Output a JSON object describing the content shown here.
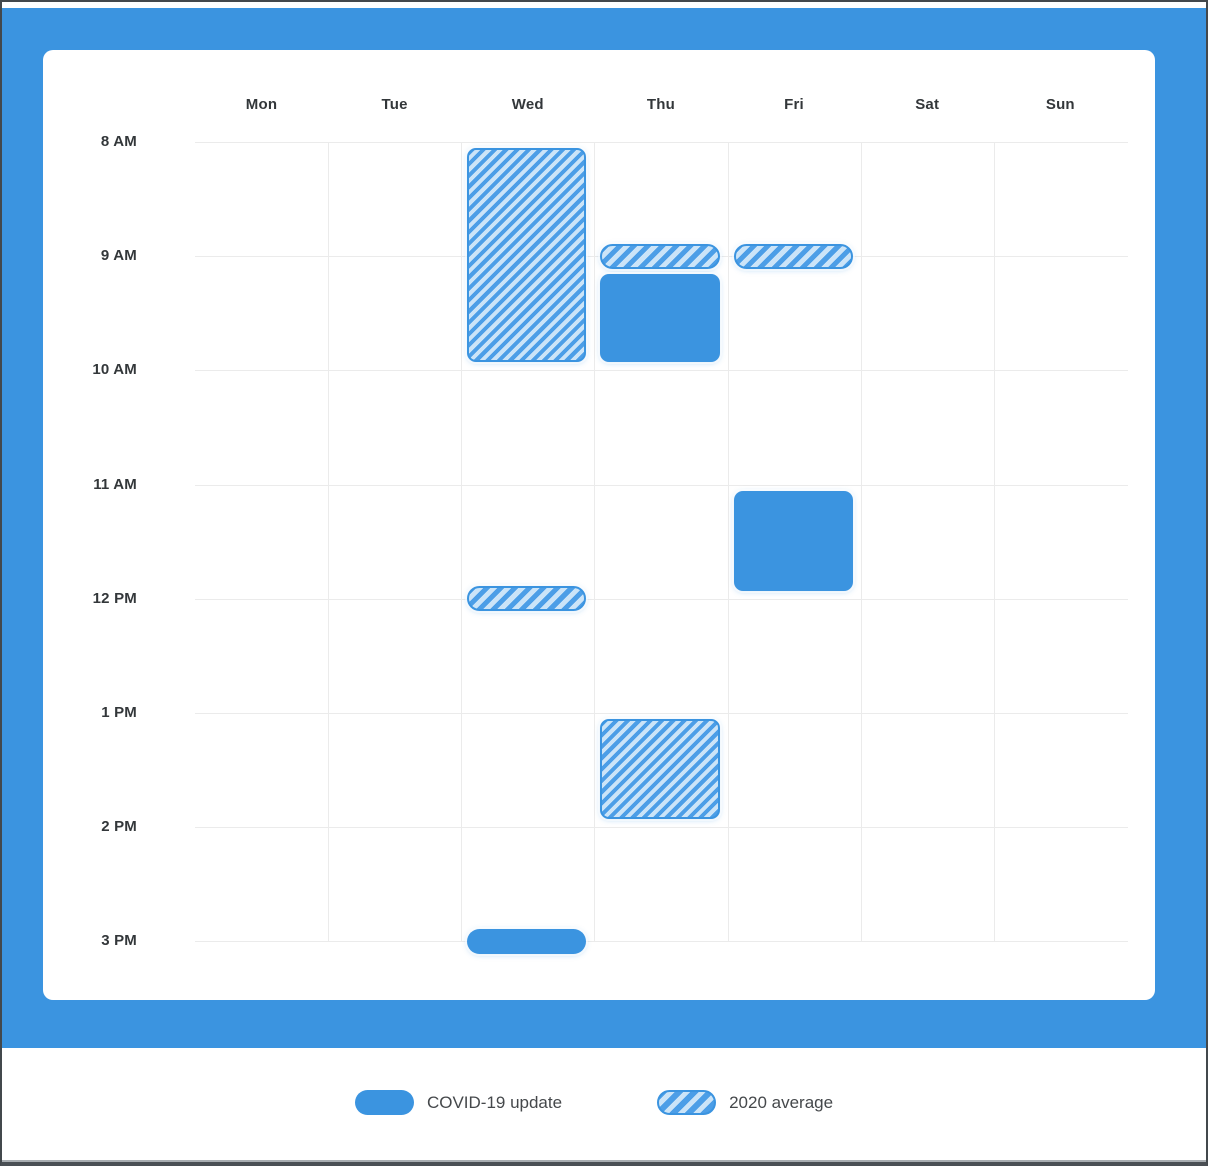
{
  "colors": {
    "accent_blue": "#3B94E0",
    "stripe_blue": "#4C9EE7",
    "stripe_light": "#CBE4F8",
    "grid_line": "#EBEBEB",
    "label_text": "#33373A",
    "legend_text": "#45484B",
    "card_background": "#FFFFFF"
  },
  "chart_data": {
    "type": "calendar-week",
    "title": "",
    "day_labels": [
      "Mon",
      "Tue",
      "Wed",
      "Thu",
      "Fri",
      "Sat",
      "Sun"
    ],
    "time_labels": [
      "8 AM",
      "9 AM",
      "10 AM",
      "11 AM",
      "12 PM",
      "1 PM",
      "2 PM",
      "3 PM"
    ],
    "time_axis": {
      "start_hour": 8,
      "end_hour": 15,
      "grid": true
    },
    "series": [
      {
        "id": "covid",
        "name": "COVID-19 update",
        "style": "solid"
      },
      {
        "id": "average",
        "name": "2020 average",
        "style": "striped"
      }
    ],
    "events": [
      {
        "day": "Wed",
        "series": "average",
        "kind": "block",
        "start": 8.0,
        "end": 10.0,
        "label": "2020 average - Wed 8:00-10:00 AM"
      },
      {
        "day": "Thu",
        "series": "average",
        "kind": "pill",
        "start": 9.0,
        "end": 9.0,
        "label": "2020 average - Thu 9:00 AM"
      },
      {
        "day": "Fri",
        "series": "average",
        "kind": "pill",
        "start": 9.0,
        "end": 9.0,
        "label": "2020 average - Fri 9:00 AM"
      },
      {
        "day": "Thu",
        "series": "covid",
        "kind": "block",
        "start": 9.1,
        "end": 10.0,
        "label": "COVID-19 update - Thu ~9:05-10:00 AM"
      },
      {
        "day": "Fri",
        "series": "covid",
        "kind": "block",
        "start": 11.0,
        "end": 12.0,
        "label": "COVID-19 update - Fri 11:00 AM-12:00 PM"
      },
      {
        "day": "Wed",
        "series": "average",
        "kind": "pill",
        "start": 12.0,
        "end": 12.0,
        "label": "2020 average - Wed 12:00 PM"
      },
      {
        "day": "Thu",
        "series": "average",
        "kind": "block",
        "start": 13.0,
        "end": 14.0,
        "label": "2020 average - Thu 1:00-2:00 PM"
      },
      {
        "day": "Wed",
        "series": "covid",
        "kind": "pill",
        "start": 15.0,
        "end": 15.0,
        "label": "COVID-19 update - Wed 3:00 PM"
      }
    ],
    "legend": {
      "position": "bottom-center"
    }
  }
}
